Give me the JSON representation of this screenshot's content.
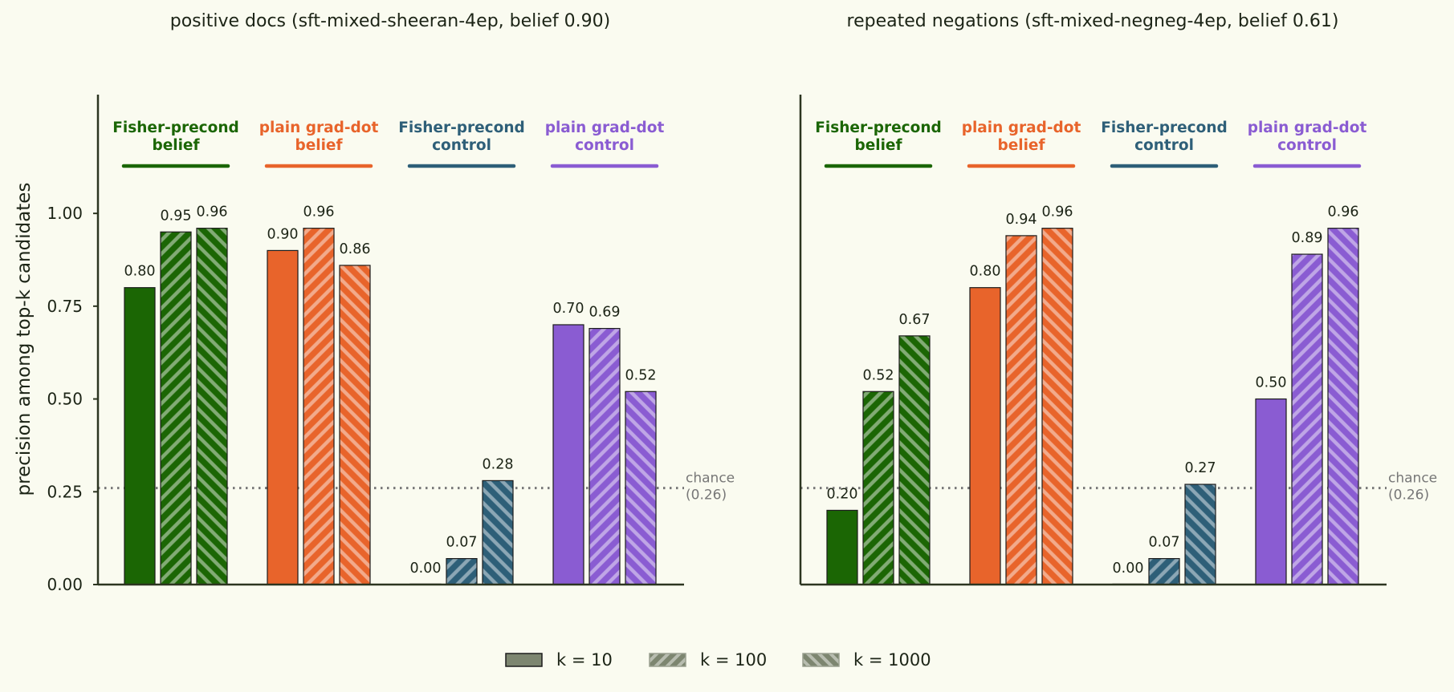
{
  "chart_data": {
    "type": "bar",
    "ylabel": "precision among top-k candidates",
    "ylim": [
      0,
      1.32
    ],
    "yticks": [
      0.0,
      0.25,
      0.5,
      0.75,
      1.0
    ],
    "ytick_labels": [
      "0.00",
      "0.25",
      "0.50",
      "0.75",
      "1.00"
    ],
    "chance": {
      "value": 0.26,
      "label_line1": "chance",
      "label_line2": "(0.26)"
    },
    "grid": false,
    "legend_position": "bottom-center",
    "legend": [
      {
        "label": "k = 10",
        "pattern": "solid"
      },
      {
        "label": "k = 100",
        "pattern": "hatch-forward"
      },
      {
        "label": "k = 1000",
        "pattern": "hatch-backward"
      }
    ],
    "groups": [
      {
        "line1": "Fisher-precond",
        "line2": "belief",
        "color": "#1b6604"
      },
      {
        "line1": "plain grad-dot",
        "line2": "belief",
        "color": "#e8642b"
      },
      {
        "line1": "Fisher-precond",
        "line2": "control",
        "color": "#2e5f78"
      },
      {
        "line1": "plain grad-dot",
        "line2": "control",
        "color": "#8a5cd2"
      }
    ],
    "panels": [
      {
        "title": "positive docs (sft-mixed-sheeran-4ep, belief 0.90)",
        "values": [
          [
            0.8,
            0.95,
            0.96
          ],
          [
            0.9,
            0.96,
            0.86
          ],
          [
            0.0,
            0.07,
            0.28
          ],
          [
            0.7,
            0.69,
            0.52
          ]
        ],
        "value_labels": [
          [
            "0.80",
            "0.95",
            "0.96"
          ],
          [
            "0.90",
            "0.96",
            "0.86"
          ],
          [
            "0.00",
            "0.07",
            "0.28"
          ],
          [
            "0.70",
            "0.69",
            "0.52"
          ]
        ]
      },
      {
        "title": "repeated negations (sft-mixed-negneg-4ep, belief 0.61)",
        "values": [
          [
            0.2,
            0.52,
            0.67
          ],
          [
            0.8,
            0.94,
            0.96
          ],
          [
            0.0,
            0.07,
            0.27
          ],
          [
            0.5,
            0.89,
            0.96
          ]
        ],
        "value_labels": [
          [
            "0.20",
            "0.52",
            "0.67"
          ],
          [
            "0.80",
            "0.94",
            "0.96"
          ],
          [
            "0.00",
            "0.07",
            "0.27"
          ],
          [
            "0.50",
            "0.89",
            "0.96"
          ]
        ]
      }
    ]
  }
}
